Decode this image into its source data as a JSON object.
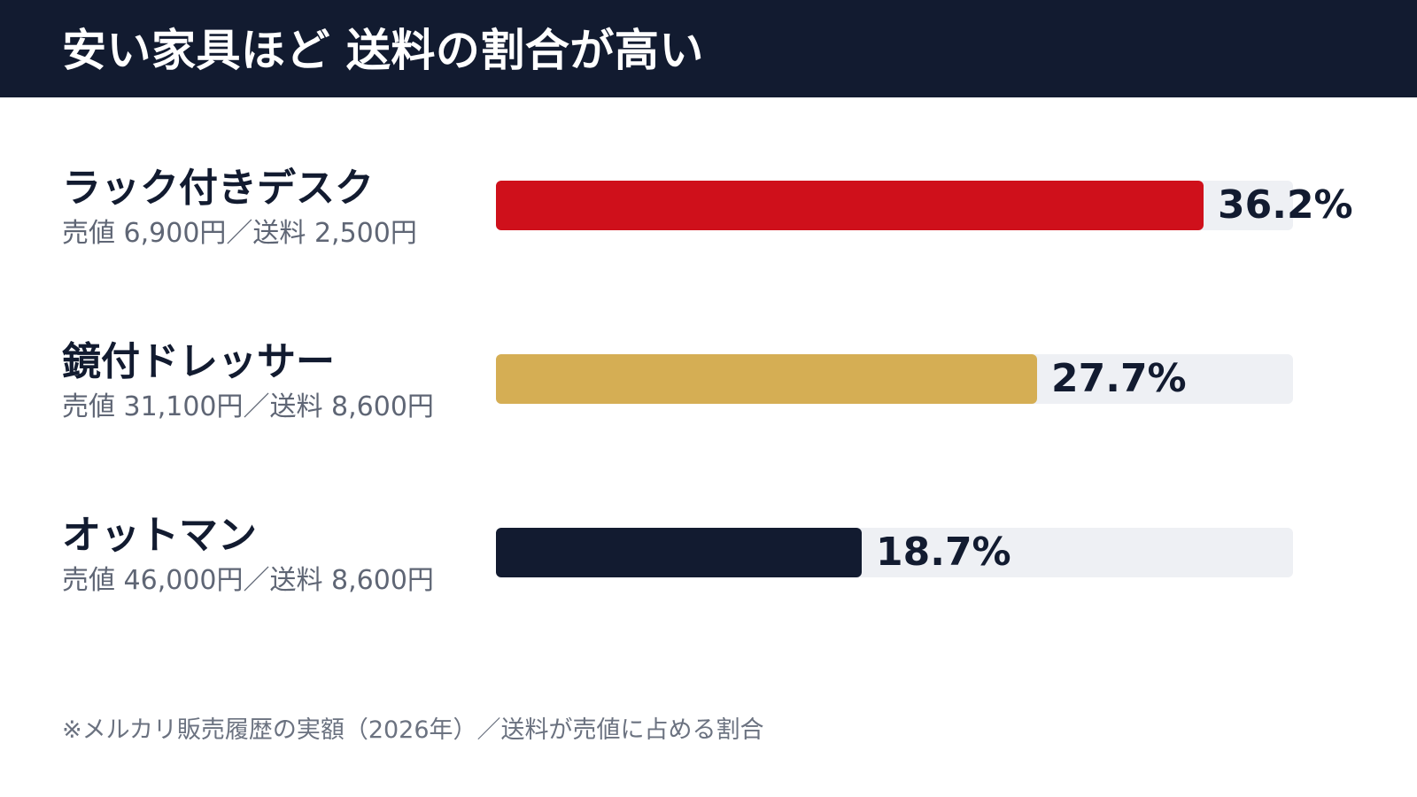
{
  "header": {
    "title": "安い家具ほど 送料の割合が高い"
  },
  "colors": {
    "header_bg": "#121b30",
    "track": "#eef0f4",
    "bar_1": "#cf101b",
    "bar_2": "#d5ae54",
    "bar_3": "#121b30",
    "text_dark": "#121b30",
    "text_sub": "#5f6675"
  },
  "chart_data": {
    "type": "bar",
    "orientation": "horizontal",
    "title": "安い家具ほど 送料の割合が高い",
    "categories": [
      "ラック付きデスク",
      "鏡付ドレッサー",
      "オットマン"
    ],
    "values": [
      36.2,
      27.7,
      18.7
    ],
    "value_labels": [
      "36.2%",
      "27.7%",
      "18.7%"
    ],
    "sublabels": [
      "売値 6,900円／送料 2,500円",
      "売値 31,100円／送料 8,600円",
      "売値 46,000円／送料 8,600円"
    ],
    "xlim": [
      0,
      40.8
    ],
    "grid": false,
    "bar_colors": [
      "#cf101b",
      "#d5ae54",
      "#121b30"
    ],
    "footnote": "※メルカリ販売履歴の実額（2026年）／送料が売値に占める割合"
  }
}
